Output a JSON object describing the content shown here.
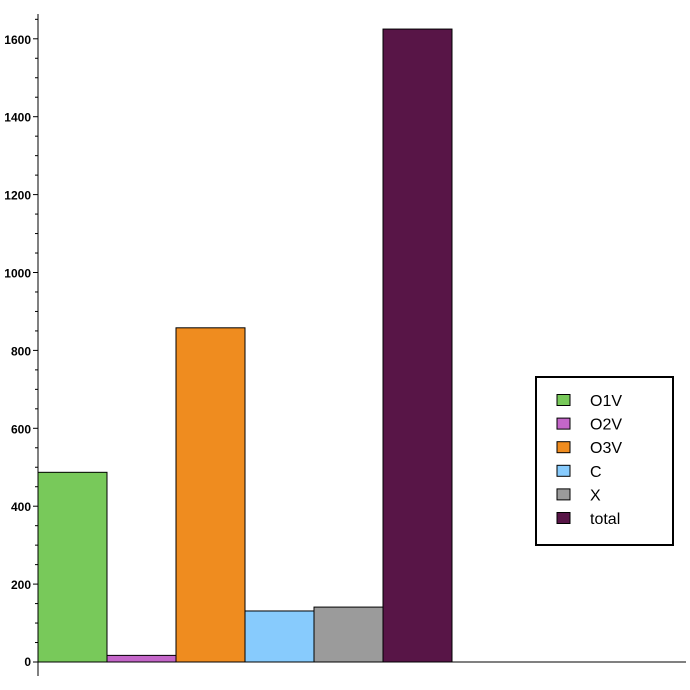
{
  "chart_data": {
    "type": "bar",
    "categories": [
      "O1V",
      "O2V",
      "O3V",
      "C",
      "X",
      "total"
    ],
    "values": [
      487,
      17,
      858,
      131,
      141,
      1625
    ],
    "colors": [
      "#78c95a",
      "#c466c9",
      "#ef8c1f",
      "#87cbfd",
      "#9b9b9b",
      "#581547"
    ],
    "yticks": [
      0,
      200,
      400,
      600,
      800,
      1000,
      1200,
      1400,
      1600
    ],
    "ylim": [
      0,
      1650
    ],
    "title": "",
    "xlabel": "",
    "ylabel": "",
    "legend": {
      "placement": "right",
      "entries": [
        "O1V",
        "O2V",
        "O3V",
        "C",
        "X",
        "total"
      ]
    }
  }
}
